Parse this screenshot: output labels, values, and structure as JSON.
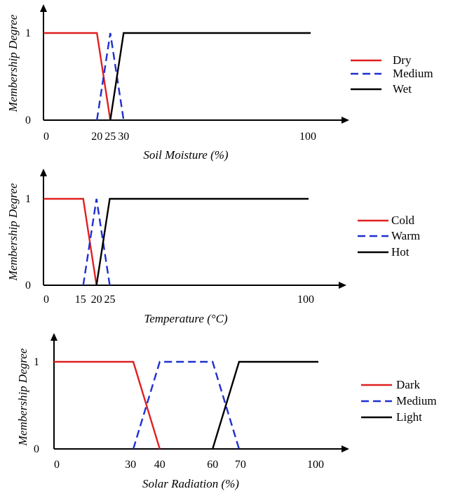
{
  "chart_data": [
    {
      "type": "line",
      "xlabel": "Soil Moisture (%)",
      "ylabel": "Membership Degree",
      "x_ticks": [
        "0",
        "20",
        "25",
        "30",
        "100"
      ],
      "y_ticks": [
        "0",
        "1"
      ],
      "xlim": [
        0,
        100
      ],
      "ylim": [
        0,
        1
      ],
      "legend": "right",
      "series": [
        {
          "name": "Dry",
          "color": "#e02020",
          "style": "solid",
          "points": [
            [
              0,
              1
            ],
            [
              20,
              1
            ],
            [
              25,
              0
            ]
          ]
        },
        {
          "name": "Medium",
          "color": "#1f2fd0",
          "style": "dashed",
          "points": [
            [
              20,
              0
            ],
            [
              25,
              1
            ],
            [
              30,
              0
            ]
          ]
        },
        {
          "name": "Wet",
          "color": "#000000",
          "style": "solid",
          "points": [
            [
              25,
              0
            ],
            [
              30,
              1
            ],
            [
              100,
              1
            ]
          ]
        }
      ]
    },
    {
      "type": "line",
      "xlabel": "Temperature (°C)",
      "ylabel": "Membership Degree",
      "x_ticks": [
        "0",
        "15",
        "20",
        "25",
        "100"
      ],
      "y_ticks": [
        "0",
        "1"
      ],
      "xlim": [
        0,
        100
      ],
      "ylim": [
        0,
        1
      ],
      "legend": "right",
      "series": [
        {
          "name": "Cold",
          "color": "#e02020",
          "style": "solid",
          "points": [
            [
              0,
              1
            ],
            [
              15,
              1
            ],
            [
              20,
              0
            ]
          ]
        },
        {
          "name": "Warm",
          "color": "#1f2fd0",
          "style": "dashed",
          "points": [
            [
              15,
              0
            ],
            [
              20,
              1
            ],
            [
              25,
              0
            ]
          ]
        },
        {
          "name": "Hot",
          "color": "#000000",
          "style": "solid",
          "points": [
            [
              20,
              0
            ],
            [
              25,
              1
            ],
            [
              100,
              1
            ]
          ]
        }
      ]
    },
    {
      "type": "line",
      "xlabel": "Solar Radiation (%)",
      "ylabel": "Membership Degree",
      "x_ticks": [
        "0",
        "30",
        "40",
        "60",
        "70",
        "100"
      ],
      "y_ticks": [
        "0",
        "1"
      ],
      "xlim": [
        0,
        100
      ],
      "ylim": [
        0,
        1
      ],
      "legend": "right",
      "series": [
        {
          "name": "Dark",
          "color": "#e02020",
          "style": "solid",
          "points": [
            [
              0,
              1
            ],
            [
              30,
              1
            ],
            [
              40,
              0
            ]
          ]
        },
        {
          "name": "Medium",
          "color": "#1f2fd0",
          "style": "dashed",
          "points": [
            [
              30,
              0
            ],
            [
              40,
              1
            ],
            [
              60,
              1
            ],
            [
              70,
              0
            ]
          ]
        },
        {
          "name": "Light",
          "color": "#000000",
          "style": "solid",
          "points": [
            [
              60,
              0
            ],
            [
              70,
              1
            ],
            [
              100,
              1
            ]
          ]
        }
      ]
    }
  ]
}
